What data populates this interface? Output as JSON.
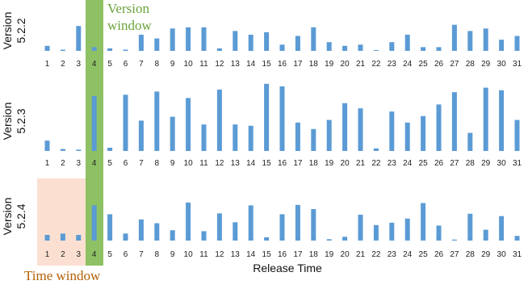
{
  "chart_data": [
    {
      "type": "bar",
      "ylabel": "Version 5.2.2",
      "categories": [
        "1",
        "2",
        "3",
        "4",
        "5",
        "6",
        "7",
        "8",
        "9",
        "10",
        "11",
        "12",
        "13",
        "14",
        "15",
        "16",
        "17",
        "18",
        "19",
        "20",
        "21",
        "22",
        "23",
        "24",
        "25",
        "26",
        "27",
        "28",
        "29",
        "30",
        "31"
      ],
      "values": [
        0.2,
        0.05,
        1.0,
        0.15,
        0.1,
        0.05,
        0.65,
        0.5,
        0.9,
        0.95,
        0.95,
        0.1,
        0.8,
        0.65,
        0.75,
        0.25,
        0.6,
        0.95,
        0.35,
        0.2,
        0.25,
        0.03,
        0.35,
        0.65,
        0.15,
        0.15,
        1.05,
        0.8,
        0.9,
        0.45,
        0.6
      ],
      "ylim": [
        0,
        1.3
      ]
    },
    {
      "type": "bar",
      "ylabel": "Version 5.2.3",
      "categories": [
        "1",
        "2",
        "3",
        "4",
        "5",
        "6",
        "7",
        "8",
        "9",
        "10",
        "11",
        "12",
        "13",
        "14",
        "15",
        "16",
        "17",
        "18",
        "19",
        "20",
        "21",
        "22",
        "23",
        "24",
        "25",
        "26",
        "27",
        "28",
        "29",
        "30",
        "31"
      ],
      "values": [
        0.16,
        0.03,
        0.02,
        0.85,
        0.05,
        0.87,
        0.47,
        0.92,
        0.53,
        0.82,
        0.41,
        0.95,
        0.41,
        0.39,
        1.04,
        1.0,
        0.44,
        0.34,
        0.48,
        0.74,
        0.66,
        0.04,
        0.61,
        0.44,
        0.54,
        0.72,
        0.91,
        0.28,
        0.98,
        0.94,
        0.48
      ],
      "ylim": [
        0,
        1.1
      ]
    },
    {
      "type": "bar",
      "ylabel": "Version 5.2.4",
      "categories": [
        "1",
        "2",
        "3",
        "4",
        "5",
        "6",
        "7",
        "8",
        "9",
        "10",
        "11",
        "12",
        "13",
        "14",
        "15",
        "16",
        "17",
        "18",
        "19",
        "20",
        "21",
        "22",
        "23",
        "24",
        "25",
        "26",
        "27",
        "28",
        "29",
        "30",
        "31"
      ],
      "values": [
        0.12,
        0.15,
        0.12,
        0.75,
        0.56,
        0.15,
        0.45,
        0.37,
        0.22,
        0.81,
        0.2,
        0.58,
        0.39,
        0.75,
        0.07,
        0.56,
        0.76,
        0.67,
        0.03,
        0.08,
        0.55,
        0.33,
        0.38,
        0.47,
        0.8,
        0.32,
        0.02,
        0.57,
        0.23,
        0.52,
        0.1
      ],
      "ylim": [
        0,
        1.1
      ]
    }
  ],
  "xlabel": "Release Time",
  "annotations": {
    "version_window": "Version window",
    "time_window": "Time window"
  },
  "colors": {
    "bar": "#5b9bd5",
    "version_window": "#7ab648",
    "version_window_text": "#6aa33a",
    "time_window": "#fbe0d2",
    "time_window_text": "#b45f06"
  }
}
